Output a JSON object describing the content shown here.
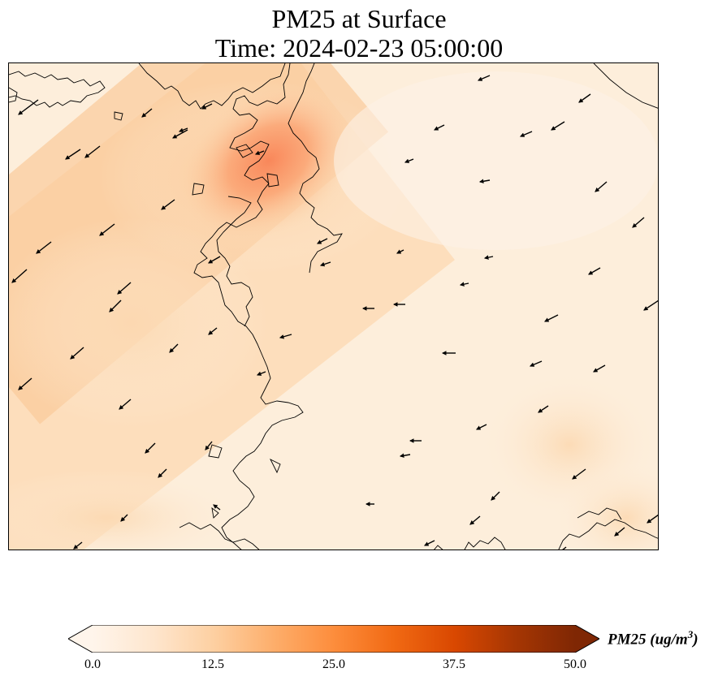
{
  "title": {
    "line1": "PM25 at Surface",
    "line2": "Time: 2024-02-23 05:00:00"
  },
  "map": {
    "variable": "PM25",
    "level": "Surface",
    "background_color": "#fdeedb",
    "coastline_color": "#000000",
    "vector_color": "#000000",
    "hotspot_color": "#f9875a",
    "vector_field": "wind-arrows"
  },
  "colorbar": {
    "label_main": "PM25 (ug/m",
    "label_exp": "3",
    "label_close": ")",
    "min": 0.0,
    "max": 50.0,
    "ticks": [
      "0.0",
      "12.5",
      "25.0",
      "37.5",
      "50.0"
    ],
    "extend": "both",
    "colors": [
      "#fff5eb",
      "#fee6ce",
      "#fdd0a2",
      "#fdae6b",
      "#fd8d3c",
      "#f16913",
      "#d94801",
      "#a63603",
      "#7f2704"
    ]
  }
}
